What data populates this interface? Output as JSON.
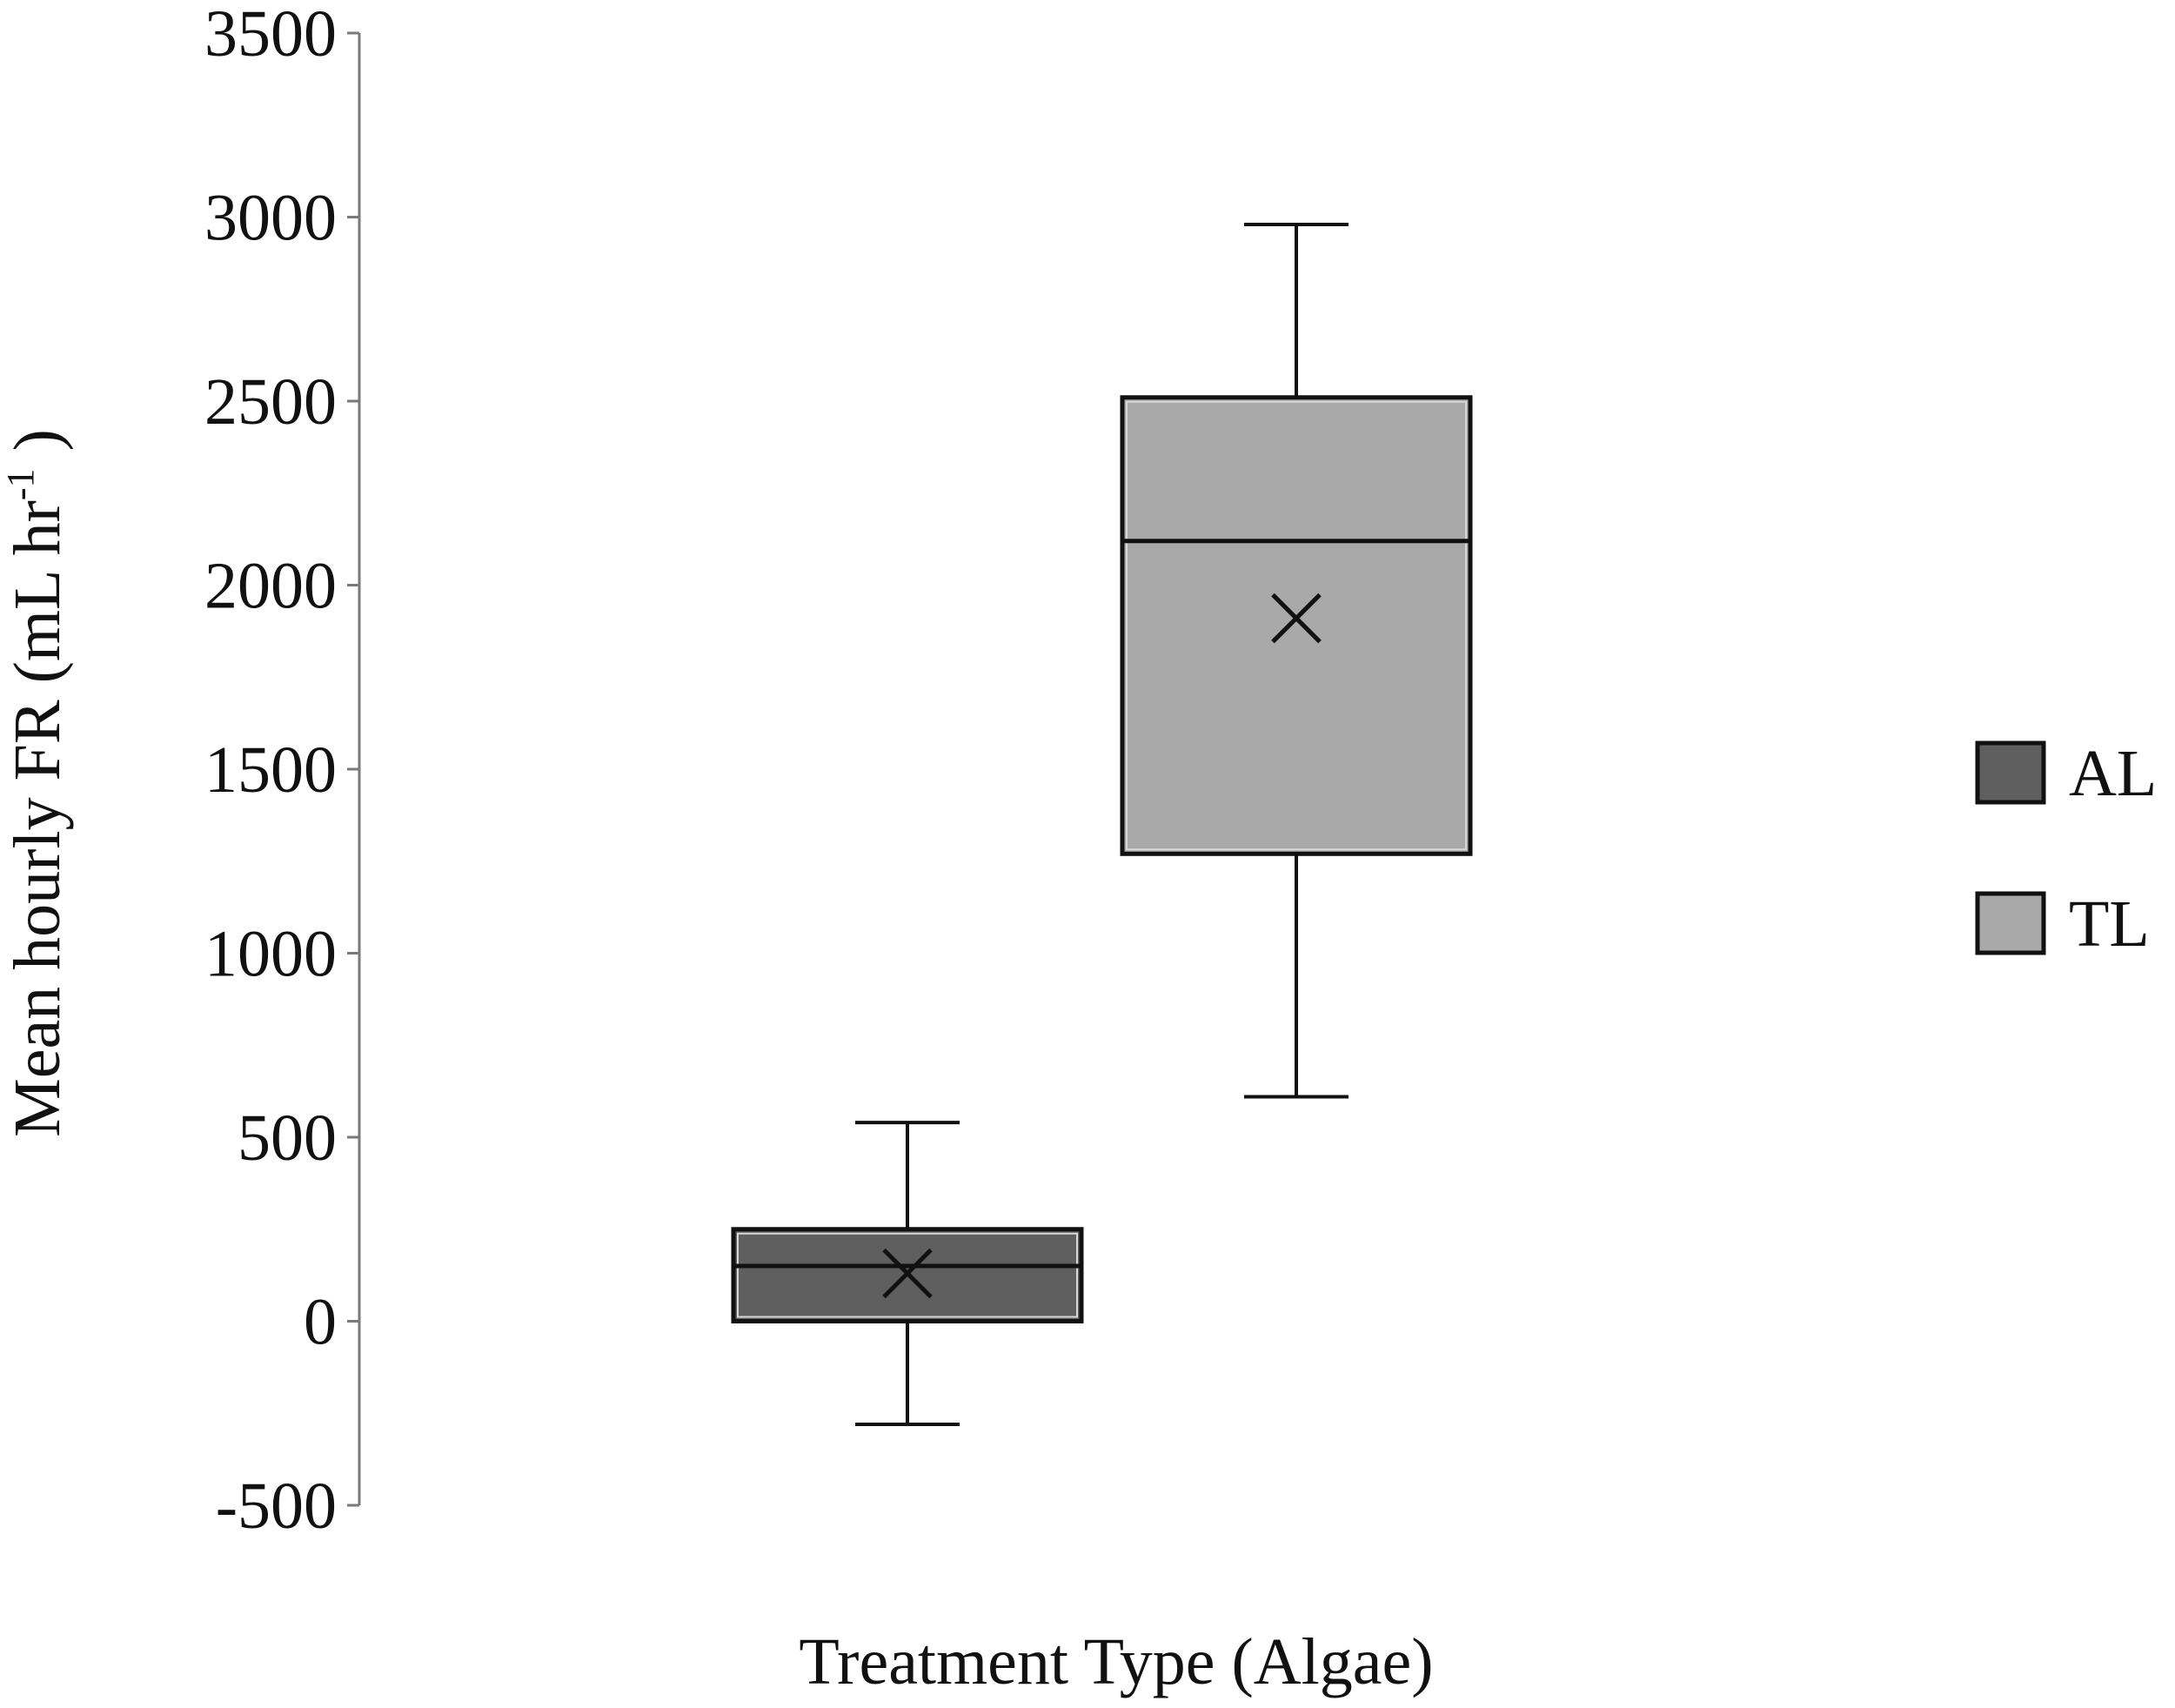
{
  "chart_data": {
    "type": "box",
    "xlabel": "Treatment Type (Algae)",
    "ylabel": {
      "main": "Mean hourly FR (mL hr",
      "superscript": "-1",
      "close": ")"
    },
    "ylim": [
      -500,
      3500
    ],
    "yticks": [
      -500,
      0,
      500,
      1000,
      1500,
      2000,
      2500,
      3000,
      3500
    ],
    "grid": false,
    "legend_position": "right",
    "series": [
      {
        "name": "AL",
        "color": "#5f5f5f",
        "whisker_low": -280,
        "q1": 0,
        "median": 150,
        "q3": 250,
        "whisker_high": 540,
        "mean": 130
      },
      {
        "name": "TL",
        "color": "#a9a9a9",
        "whisker_low": 610,
        "q1": 1270,
        "median": 2120,
        "q3": 2510,
        "whisker_high": 2980,
        "mean": 1910
      }
    ]
  }
}
